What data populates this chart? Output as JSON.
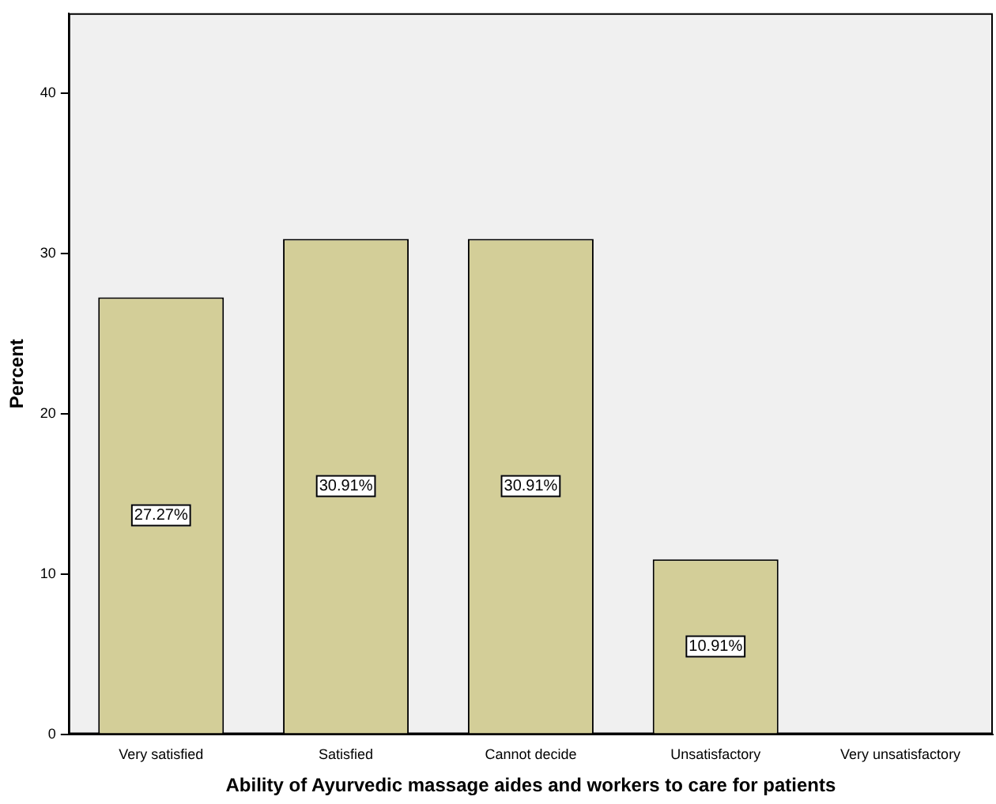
{
  "chart_data": {
    "type": "bar",
    "xlabel": "Ability of Ayurvedic massage aides and workers to care for patients",
    "ylabel": "Percent",
    "categories": [
      "Very satisfied",
      "Satisfied",
      "Cannot decide",
      "Unsatisfactory",
      "Very unsatisfactory"
    ],
    "values": [
      27.27,
      30.91,
      30.91,
      10.91,
      0
    ],
    "value_labels": [
      "27.27%",
      "30.91%",
      "30.91%",
      "10.91%",
      null
    ],
    "color": "#d3ce98",
    "ylim": [
      0,
      45
    ],
    "yticks": [
      0,
      10,
      20,
      30,
      40
    ],
    "grid": false,
    "legend": false
  }
}
